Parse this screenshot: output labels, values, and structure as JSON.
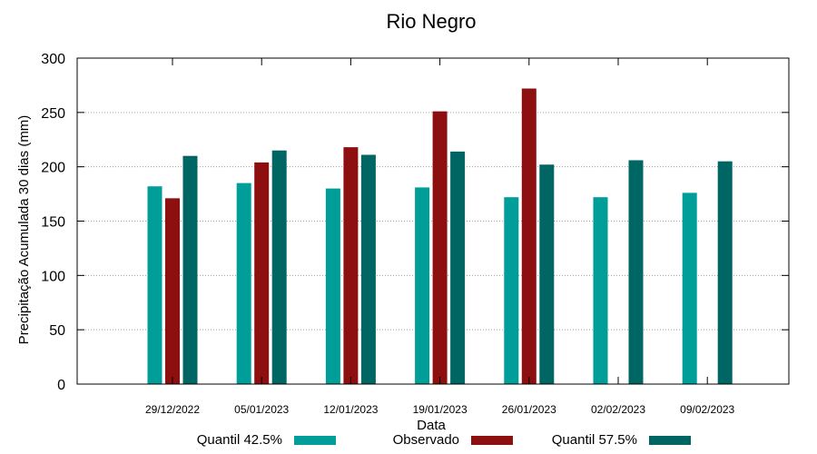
{
  "chart_data": {
    "type": "bar",
    "title": "Rio Negro",
    "xlabel": "Data",
    "ylabel": "Precipitação Acumulada 30 dias (mm)",
    "ylim": [
      0,
      300
    ],
    "yticks": [
      0,
      50,
      100,
      150,
      200,
      250,
      300
    ],
    "categories": [
      "29/12/2022",
      "05/01/2023",
      "12/01/2023",
      "19/01/2023",
      "26/01/2023",
      "02/02/2023",
      "09/02/2023"
    ],
    "series": [
      {
        "name": "Quantil 42.5%",
        "color": "#009e99",
        "values": [
          182,
          185,
          180,
          181,
          172,
          172,
          176
        ]
      },
      {
        "name": "Observado",
        "color": "#8e0f0f",
        "values": [
          171,
          204,
          218,
          251,
          272,
          null,
          null
        ]
      },
      {
        "name": "Quantil 57.5%",
        "color": "#006663",
        "values": [
          210,
          215,
          211,
          214,
          202,
          206,
          205
        ]
      }
    ],
    "grid": true,
    "legend_position": "bottom"
  }
}
